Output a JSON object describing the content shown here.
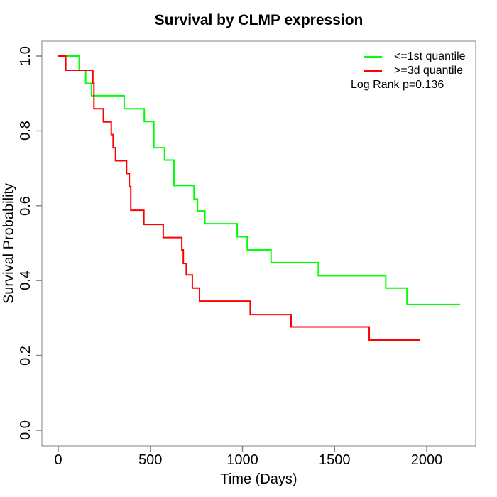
{
  "title": "Survival by CLMP expression",
  "x_axis": {
    "label": "Time (Days)",
    "tick_labels": [
      "0",
      "500",
      "1000",
      "1500",
      "2000"
    ],
    "tick_values": [
      0,
      500,
      1000,
      1500,
      2000
    ]
  },
  "y_axis": {
    "label": "Survival Probability",
    "tick_labels": [
      "0.0",
      "0.2",
      "0.4",
      "0.6",
      "0.8",
      "1.0"
    ],
    "tick_values": [
      0.0,
      0.2,
      0.4,
      0.6,
      0.8,
      1.0
    ]
  },
  "legend": {
    "entries": [
      {
        "label": "<=1st quantile",
        "color": "#00ff00"
      },
      {
        "label": ">=3d quantile",
        "color": "#ff0000"
      }
    ],
    "note": "Log Rank p=0.136"
  },
  "colors": {
    "green_series": "#00ff00",
    "red_series": "#ff0000",
    "axis_line": "#808080",
    "text": "#000000",
    "background": "#ffffff"
  },
  "chart_data": {
    "type": "line",
    "subtype": "kaplan-meier-step",
    "title": "Survival by CLMP expression",
    "xlabel": "Time (Days)",
    "ylabel": "Survival Probability",
    "xlim": [
      -90,
      2290
    ],
    "ylim": [
      -0.04,
      1.04
    ],
    "x_ticks": [
      0,
      500,
      1000,
      1500,
      2000
    ],
    "y_ticks": [
      0.0,
      0.2,
      0.4,
      0.6,
      0.8,
      1.0
    ],
    "grid": false,
    "legend_position": "top-right",
    "annotations": [
      "Log Rank p=0.136"
    ],
    "series": [
      {
        "name": "<=1st quantile",
        "color": "#00ff00",
        "end_time": 2182,
        "steps": [
          [
            0,
            1.0
          ],
          [
            114,
            0.962
          ],
          [
            149,
            0.927
          ],
          [
            181,
            0.894
          ],
          [
            358,
            0.859
          ],
          [
            467,
            0.825
          ],
          [
            519,
            0.755
          ],
          [
            577,
            0.722
          ],
          [
            628,
            0.654
          ],
          [
            737,
            0.618
          ],
          [
            756,
            0.586
          ],
          [
            796,
            0.552
          ],
          [
            971,
            0.517
          ],
          [
            1026,
            0.482
          ],
          [
            1155,
            0.448
          ],
          [
            1412,
            0.413
          ],
          [
            1778,
            0.38
          ],
          [
            1893,
            0.336
          ]
        ]
      },
      {
        "name": ">=3d quantile",
        "color": "#ff0000",
        "end_time": 1964,
        "steps": [
          [
            0,
            1.0
          ],
          [
            41,
            0.962
          ],
          [
            188,
            0.927
          ],
          [
            194,
            0.859
          ],
          [
            245,
            0.824
          ],
          [
            288,
            0.79
          ],
          [
            298,
            0.755
          ],
          [
            311,
            0.72
          ],
          [
            371,
            0.686
          ],
          [
            386,
            0.651
          ],
          [
            394,
            0.588
          ],
          [
            465,
            0.55
          ],
          [
            570,
            0.515
          ],
          [
            671,
            0.482
          ],
          [
            679,
            0.446
          ],
          [
            695,
            0.415
          ],
          [
            728,
            0.38
          ],
          [
            767,
            0.345
          ],
          [
            1042,
            0.309
          ],
          [
            1264,
            0.276
          ],
          [
            1688,
            0.241
          ]
        ]
      }
    ]
  }
}
